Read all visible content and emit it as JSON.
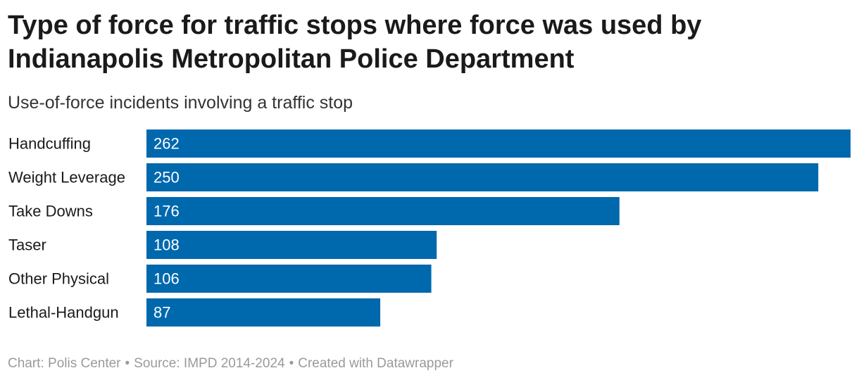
{
  "header": {
    "title": "Type of force for traffic stops where force was used by Indianapolis Metropolitan Police Department",
    "subtitle": "Use-of-force incidents involving a traffic stop"
  },
  "footer": {
    "chart_credit": "Chart: Polis Center",
    "source": "Source: IMPD 2014-2024",
    "created_with": "Created with Datawrapper",
    "separator": "•"
  },
  "colors": {
    "bar": "#0068ad",
    "value_text": "#ffffff"
  },
  "chart_data": {
    "type": "bar",
    "orientation": "horizontal",
    "title": "Type of force for traffic stops where force was used by Indianapolis Metropolitan Police Department",
    "subtitle": "Use-of-force incidents involving a traffic stop",
    "categories": [
      "Handcuffing",
      "Weight Leverage",
      "Take Downs",
      "Taser",
      "Other Physical",
      "Lethal-Handgun"
    ],
    "values": [
      262,
      250,
      176,
      108,
      106,
      87
    ],
    "xlabel": "",
    "ylabel": "",
    "xlim": [
      0,
      262
    ],
    "grid": false,
    "legend": "none"
  }
}
